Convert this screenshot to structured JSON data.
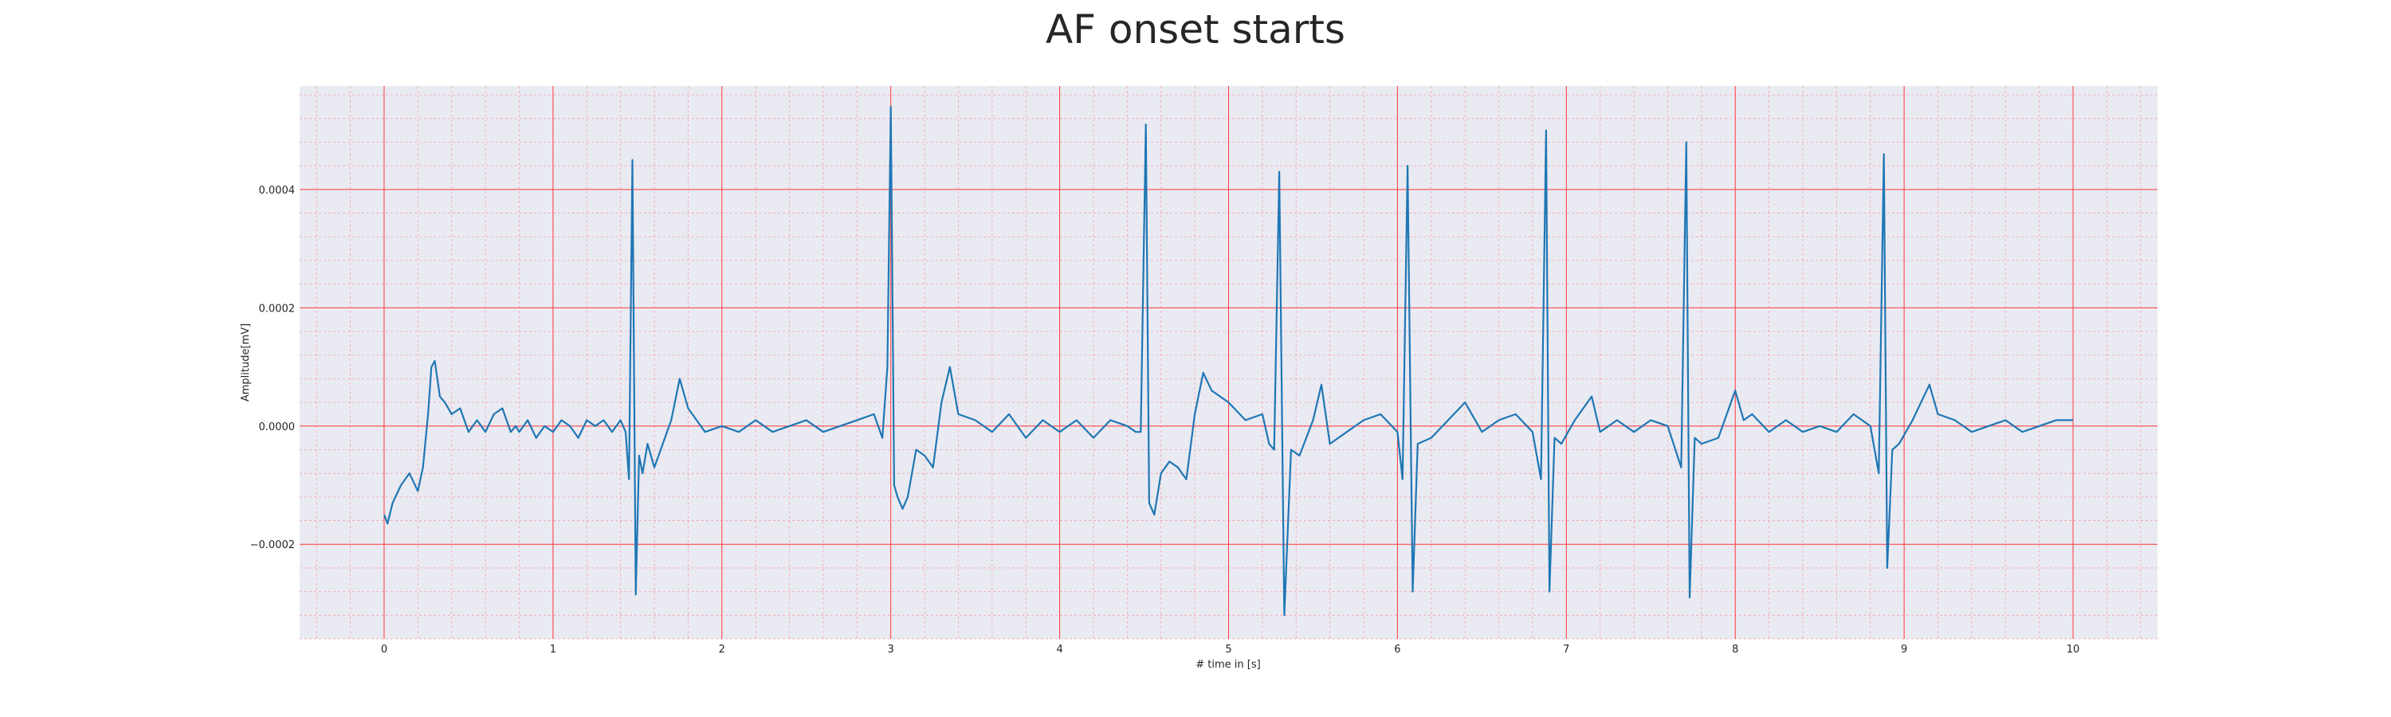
{
  "chart_data": {
    "type": "line",
    "title": "AF onset starts",
    "xlabel": "# time in [s]",
    "ylabel": "Amplitude[mV]",
    "xlim": [
      -0.5,
      10.5
    ],
    "ylim": [
      -0.00036,
      0.000575
    ],
    "x_ticks": [
      0,
      1,
      2,
      3,
      4,
      5,
      6,
      7,
      8,
      9,
      10
    ],
    "x_tick_labels": [
      "0",
      "1",
      "2",
      "3",
      "4",
      "5",
      "6",
      "7",
      "8",
      "9",
      "10"
    ],
    "y_ticks": [
      -0.0002,
      0.0,
      0.0002,
      0.0004
    ],
    "y_tick_labels": [
      "−0.0002",
      "0.0000",
      "0.0002",
      "0.0004"
    ],
    "grid": {
      "major": true,
      "minor": true,
      "major_color": "#ff3b3b",
      "minor_color": "#f4a3a8"
    },
    "background": "#eaeaf2",
    "legend": "none",
    "series": [
      {
        "color": "#1f77b4",
        "x": [
          0.0,
          0.02,
          0.05,
          0.1,
          0.15,
          0.2,
          0.23,
          0.26,
          0.28,
          0.3,
          0.33,
          0.36,
          0.4,
          0.45,
          0.5,
          0.55,
          0.6,
          0.65,
          0.7,
          0.75,
          0.78,
          0.8,
          0.85,
          0.9,
          0.95,
          1.0,
          1.05,
          1.1,
          1.15,
          1.2,
          1.25,
          1.3,
          1.35,
          1.4,
          1.43,
          1.45,
          1.47,
          1.49,
          1.51,
          1.53,
          1.56,
          1.6,
          1.65,
          1.7,
          1.75,
          1.8,
          1.85,
          1.9,
          2.0,
          2.1,
          2.2,
          2.3,
          2.4,
          2.5,
          2.6,
          2.7,
          2.8,
          2.9,
          2.95,
          2.98,
          3.0,
          3.02,
          3.04,
          3.07,
          3.1,
          3.15,
          3.2,
          3.25,
          3.3,
          3.35,
          3.4,
          3.5,
          3.6,
          3.7,
          3.8,
          3.9,
          4.0,
          4.1,
          4.2,
          4.3,
          4.4,
          4.45,
          4.48,
          4.51,
          4.53,
          4.56,
          4.6,
          4.65,
          4.7,
          4.75,
          4.8,
          4.85,
          4.9,
          5.0,
          5.1,
          5.2,
          5.24,
          5.27,
          5.3,
          5.33,
          5.37,
          5.42,
          5.5,
          5.55,
          5.6,
          5.7,
          5.8,
          5.9,
          6.0,
          6.03,
          6.06,
          6.09,
          6.12,
          6.2,
          6.3,
          6.4,
          6.5,
          6.6,
          6.7,
          6.8,
          6.85,
          6.88,
          6.9,
          6.93,
          6.97,
          7.05,
          7.15,
          7.2,
          7.3,
          7.4,
          7.5,
          7.6,
          7.68,
          7.71,
          7.73,
          7.76,
          7.8,
          7.9,
          8.0,
          8.05,
          8.1,
          8.2,
          8.3,
          8.4,
          8.5,
          8.6,
          8.7,
          8.8,
          8.85,
          8.88,
          8.9,
          8.93,
          8.97,
          9.05,
          9.15,
          9.2,
          9.3,
          9.4,
          9.5,
          9.6,
          9.7,
          9.8,
          9.9,
          10.0
        ],
        "y": [
          -0.00015,
          -0.000165,
          -0.00013,
          -0.0001,
          -8e-05,
          -0.00011,
          -7e-05,
          2e-05,
          0.0001,
          0.00011,
          5e-05,
          4e-05,
          2e-05,
          3e-05,
          -1e-05,
          1e-05,
          -1e-05,
          2e-05,
          3e-05,
          -1e-05,
          0.0,
          -1e-05,
          1e-05,
          -2e-05,
          0.0,
          -1e-05,
          1e-05,
          0.0,
          -2e-05,
          1e-05,
          0.0,
          1e-05,
          -1e-05,
          1e-05,
          -1e-05,
          -9e-05,
          0.00045,
          -0.000285,
          -5e-05,
          -8e-05,
          -3e-05,
          -7e-05,
          -3e-05,
          1e-05,
          8e-05,
          3e-05,
          1e-05,
          -1e-05,
          0.0,
          -1e-05,
          1e-05,
          -1e-05,
          0.0,
          1e-05,
          -1e-05,
          0.0,
          1e-05,
          2e-05,
          -2e-05,
          0.0001,
          0.00054,
          -0.0001,
          -0.00012,
          -0.00014,
          -0.00012,
          -4e-05,
          -5e-05,
          -7e-05,
          4e-05,
          0.0001,
          2e-05,
          1e-05,
          -1e-05,
          2e-05,
          -2e-05,
          1e-05,
          -1e-05,
          1e-05,
          -2e-05,
          1e-05,
          0.0,
          -1e-05,
          -1e-05,
          0.00051,
          -0.00013,
          -0.00015,
          -8e-05,
          -6e-05,
          -7e-05,
          -9e-05,
          2e-05,
          9e-05,
          6e-05,
          4e-05,
          1e-05,
          2e-05,
          -3e-05,
          -4e-05,
          0.00043,
          -0.00032,
          -4e-05,
          -5e-05,
          1e-05,
          7e-05,
          -3e-05,
          -1e-05,
          1e-05,
          2e-05,
          -1e-05,
          -9e-05,
          0.00044,
          -0.00028,
          -3e-05,
          -2e-05,
          1e-05,
          4e-05,
          -1e-05,
          1e-05,
          2e-05,
          -1e-05,
          -9e-05,
          0.0005,
          -0.00028,
          -2e-05,
          -3e-05,
          1e-05,
          5e-05,
          -1e-05,
          1e-05,
          -1e-05,
          1e-05,
          0.0,
          -7e-05,
          0.00048,
          -0.00029,
          -2e-05,
          -3e-05,
          -2e-05,
          6e-05,
          1e-05,
          2e-05,
          -1e-05,
          1e-05,
          -1e-05,
          0.0,
          -1e-05,
          2e-05,
          0.0,
          -8e-05,
          0.00046,
          -0.00024,
          -4e-05,
          -3e-05,
          1e-05,
          7e-05,
          2e-05,
          1e-05,
          -1e-05,
          0.0,
          1e-05,
          -1e-05,
          0.0,
          1e-05,
          1e-05
        ]
      }
    ]
  }
}
